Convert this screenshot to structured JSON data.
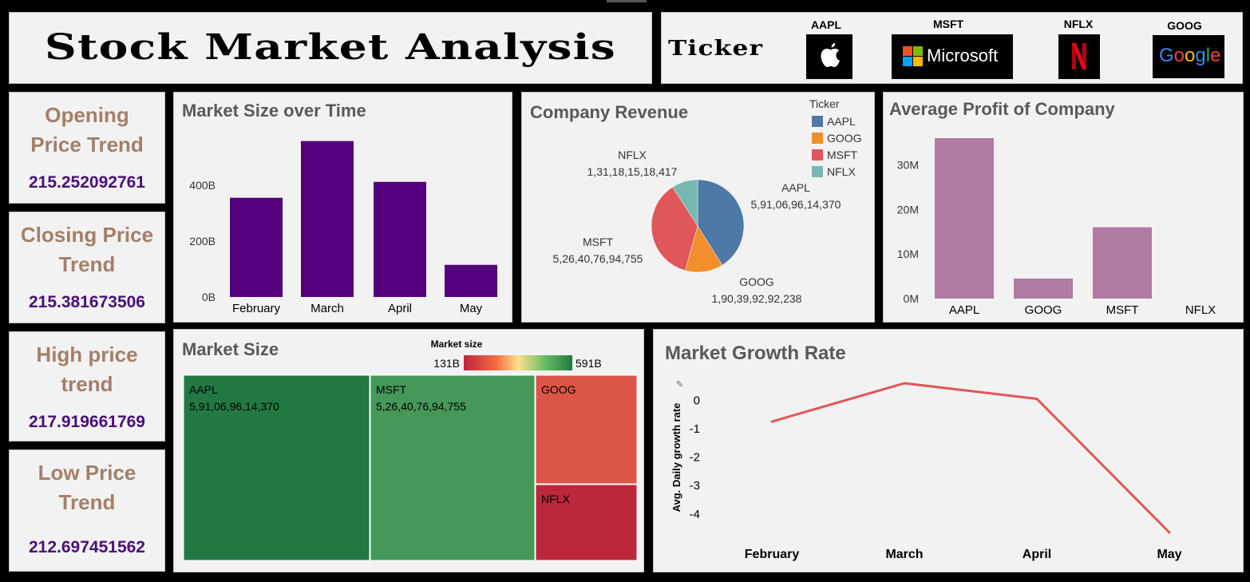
{
  "header": {
    "title": "Stock Market Analysis",
    "ticker_label": "Ticker"
  },
  "tickers": [
    {
      "name": "AAPL",
      "logo": "apple-logo"
    },
    {
      "name": "MSFT",
      "logo_text": "Microsoft"
    },
    {
      "name": "NFLX",
      "logo": "netflix-logo"
    },
    {
      "name": "GOOG",
      "logo_text": "Google"
    }
  ],
  "kpis": [
    {
      "label": "Opening Price Trend",
      "value": "215.252092761"
    },
    {
      "label": "Closing Price Trend",
      "value": "215.381673506"
    },
    {
      "label": "High price trend",
      "value": "217.919661769"
    },
    {
      "label": "Low Price Trend",
      "value": "212.697451562"
    }
  ],
  "colors": {
    "kpi_title": "#a47f68",
    "kpi_value": "#4a0f78",
    "bar_purple": "#55007c",
    "bar_mauve": "#b17ba3",
    "line": "#e15759",
    "pie": {
      "AAPL": "#4e79a7",
      "GOOG": "#f28e2b",
      "MSFT": "#e15759",
      "NFLX": "#76b7b2"
    }
  },
  "chart_data": [
    {
      "id": "market_size_over_time",
      "type": "bar",
      "title": "Market Size over Time",
      "categories": [
        "February",
        "March",
        "April",
        "May"
      ],
      "values": [
        355,
        558,
        412,
        115
      ],
      "unit": "B",
      "yticks": [
        "0B",
        "200B",
        "400B"
      ],
      "ylim": [
        0,
        560
      ],
      "grid": false
    },
    {
      "id": "company_revenue",
      "type": "pie",
      "title": "Company Revenue",
      "legend_title": "Ticker",
      "legend_position": "top-right",
      "slices": [
        {
          "name": "AAPL",
          "value": 591069614370,
          "label": "5,91,06,96,14,370"
        },
        {
          "name": "GOOG",
          "value": 190399292238,
          "label": "1,90,39,92,92,238"
        },
        {
          "name": "MSFT",
          "value": 526407694755,
          "label": "5,26,40,76,94,755"
        },
        {
          "name": "NFLX",
          "value": 131181518417,
          "label": "1,31,18,15,18,417"
        }
      ]
    },
    {
      "id": "average_profit",
      "type": "bar",
      "title": "Average Profit of Company",
      "categories": [
        "AAPL",
        "GOOG",
        "MSFT",
        "NFLX"
      ],
      "values": [
        36,
        4.5,
        16,
        0
      ],
      "unit": "M",
      "yticks": [
        "0M",
        "10M",
        "20M",
        "30M"
      ],
      "ylim": [
        0,
        36
      ],
      "grid": false
    },
    {
      "id": "market_size_treemap",
      "type": "heatmap",
      "title": "Market Size",
      "legend_title": "Market size",
      "legend_min": "131B",
      "legend_max": "591B",
      "cells": [
        {
          "name": "AAPL",
          "label": "5,91,06,96,14,370",
          "value": 591
        },
        {
          "name": "MSFT",
          "label": "5,26,40,76,94,755",
          "value": 526
        },
        {
          "name": "GOOG",
          "label": "",
          "value": 190
        },
        {
          "name": "NFLX",
          "label": "",
          "value": 131
        }
      ]
    },
    {
      "id": "market_growth_rate",
      "type": "line",
      "title": "Market Growth Rate",
      "ylabel": "Avg. Daily growth rate",
      "categories": [
        "February",
        "March",
        "April",
        "May"
      ],
      "values": [
        -0.75,
        0.6,
        0.05,
        -4.65
      ],
      "yticks": [
        0,
        -1,
        -2,
        -3,
        -4
      ],
      "ylim": [
        -4.65,
        0.6
      ],
      "grid": false
    }
  ]
}
